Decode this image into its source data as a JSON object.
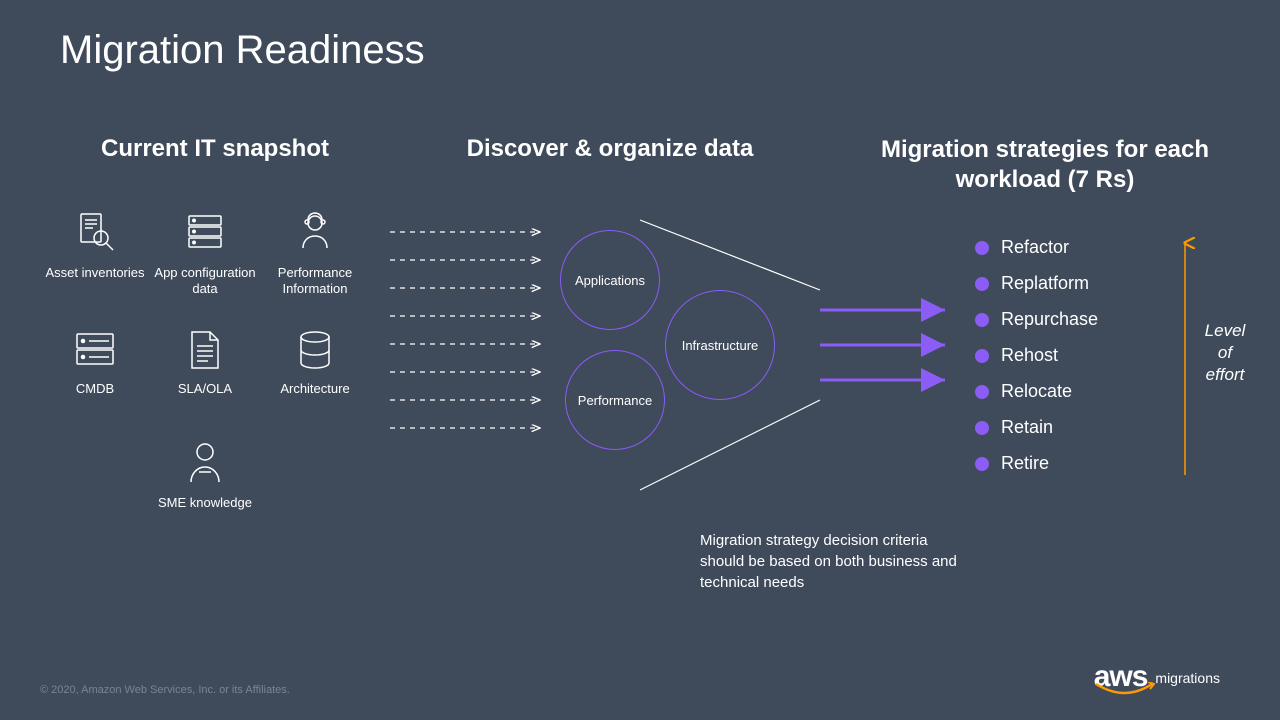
{
  "title": "Migration Readiness",
  "sections": {
    "snapshot": "Current IT snapshot",
    "discover": "Discover & organize data",
    "strategies": "Migration strategies for each workload (7 Rs)"
  },
  "snapshot_items": [
    {
      "key": "asset",
      "label": "Asset inventories"
    },
    {
      "key": "appcfg",
      "label": "App configuration data"
    },
    {
      "key": "perf",
      "label": "Performance Information"
    },
    {
      "key": "cmdb",
      "label": "CMDB"
    },
    {
      "key": "sla",
      "label": "SLA/OLA"
    },
    {
      "key": "arch",
      "label": "Architecture"
    },
    {
      "key": "sme",
      "label": "SME knowledge"
    }
  ],
  "circles": {
    "applications": "Applications",
    "infrastructure": "Infrastructure",
    "performance": "Performance"
  },
  "strategies": [
    "Refactor",
    "Replatform",
    "Repurchase",
    "Rehost",
    "Relocate",
    "Retain",
    "Retire"
  ],
  "level_of_effort": "Level of effort",
  "note": "Migration strategy decision criteria should be based on both business and technical needs",
  "copyright": "© 2020, Amazon Web Services, Inc. or its Affiliates.",
  "logo": {
    "brand": "aws",
    "sub": "migrations"
  },
  "colors": {
    "background": "#3f4a5a",
    "text": "#ffffff",
    "accent_purple": "#8b5cf6",
    "accent_orange": "#ff9900",
    "muted": "#7a8494"
  },
  "layout": {
    "dashed_arrow_count": 7,
    "funnel_purple_arrows": 3
  },
  "typography": {
    "title_fontsize": 40,
    "section_header_fontsize": 24,
    "icon_label_fontsize": 13,
    "strategy_fontsize": 18,
    "note_fontsize": 15
  }
}
